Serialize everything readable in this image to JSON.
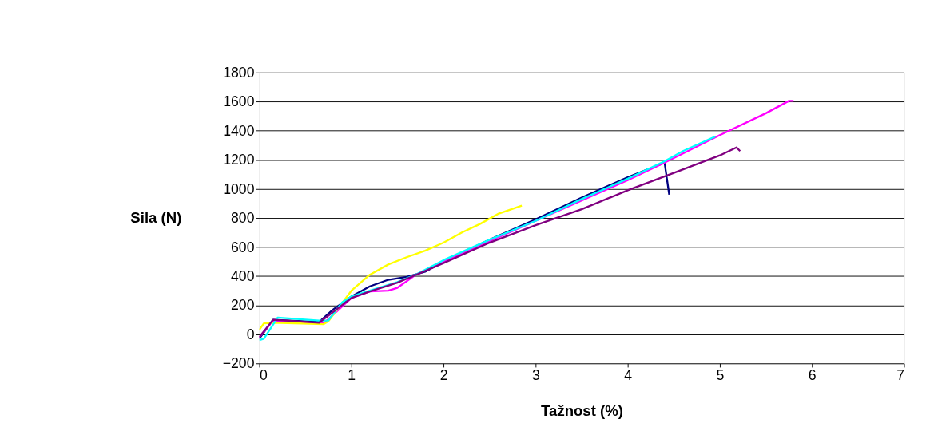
{
  "chart_data": {
    "type": "line",
    "xlabel": "Tažnost (%)",
    "ylabel": "Sila (N)",
    "xlim": [
      0,
      7
    ],
    "xticks": [
      0,
      1,
      2,
      3,
      4,
      5,
      6,
      7
    ],
    "ylim": [
      -200,
      1800
    ],
    "yticks": [
      -200,
      0,
      200,
      400,
      600,
      800,
      1000,
      1200,
      1400,
      1600,
      1800
    ],
    "grid": "y",
    "legend": false,
    "marker": "none",
    "line_style": "solid",
    "series": [
      {
        "color": "#000080",
        "x": [
          0,
          0.15,
          0.65,
          0.8,
          1,
          1.2,
          1.4,
          1.6,
          1.8,
          2,
          2.5,
          3,
          3.5,
          4,
          4.4,
          4.45
        ],
        "values": [
          -30,
          100,
          85,
          170,
          260,
          330,
          375,
          395,
          430,
          500,
          650,
          790,
          940,
          1080,
          1180,
          960
        ]
      },
      {
        "color": "#ff00ff",
        "x": [
          0,
          0.15,
          0.7,
          1,
          1.2,
          1.4,
          1.5,
          1.7,
          2,
          2.5,
          3,
          3.5,
          4,
          4.4,
          5,
          5.5,
          5.75,
          5.8
        ],
        "values": [
          -20,
          95,
          75,
          250,
          295,
          300,
          320,
          410,
          500,
          640,
          780,
          920,
          1060,
          1180,
          1370,
          1520,
          1605,
          1605
        ]
      },
      {
        "color": "#ffff00",
        "x": [
          0,
          0.05,
          0.15,
          0.7,
          0.75,
          1,
          1.2,
          1.4,
          1.6,
          1.8,
          2,
          2.2,
          2.4,
          2.6,
          2.85
        ],
        "values": [
          30,
          75,
          80,
          70,
          90,
          300,
          410,
          480,
          530,
          575,
          630,
          700,
          760,
          830,
          885
        ]
      },
      {
        "color": "#00ffff",
        "x": [
          0,
          0.05,
          0.2,
          0.65,
          0.75,
          0.9,
          1,
          1.2,
          1.5,
          1.7,
          2,
          2.5,
          3,
          3.5,
          4,
          4.4,
          4.6,
          4.95
        ],
        "values": [
          -40,
          -30,
          115,
          95,
          95,
          220,
          260,
          300,
          360,
          410,
          510,
          650,
          780,
          930,
          1070,
          1190,
          1260,
          1360
        ]
      },
      {
        "color": "#800080",
        "x": [
          0,
          0.15,
          0.65,
          1,
          1.2,
          1.5,
          2,
          2.5,
          3,
          3.5,
          4,
          4.5,
          5,
          5.18,
          5.22
        ],
        "values": [
          -20,
          100,
          80,
          250,
          295,
          355,
          490,
          630,
          750,
          860,
          990,
          1110,
          1230,
          1285,
          1260
        ]
      }
    ]
  }
}
